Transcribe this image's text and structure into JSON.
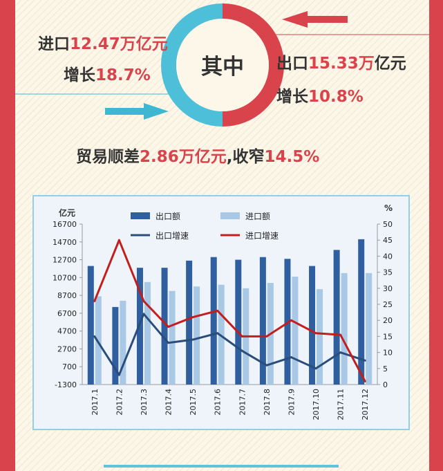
{
  "infographic": {
    "center_label": "其中",
    "import": {
      "prefix": "进口",
      "value": "12.47万亿元",
      "growth_prefix": "增长",
      "growth_value": "18.7%"
    },
    "export": {
      "prefix": "出口",
      "value": "15.33万",
      "unit": "亿元",
      "growth_prefix": "增长",
      "growth_value": "10.8%"
    },
    "surplus": {
      "prefix": "贸易顺差",
      "value": "2.86万亿元",
      "separator": ",收窄",
      "narrow_value": "14.5%"
    }
  },
  "colors": {
    "red": "#d9434b",
    "teal": "#3fb7d1",
    "export_bar": "#2f5f9e",
    "import_bar": "#a8c8e6",
    "export_growth_line": "#2a4d7c",
    "import_growth_line": "#c41d1d"
  },
  "chart_data": {
    "type": "bar",
    "left_unit_label": "亿元",
    "right_unit_label": "%",
    "categories": [
      "2017.1",
      "2017.2",
      "2017.3",
      "2017.4",
      "2017.5",
      "2017.6",
      "2017.7",
      "2017.8",
      "2017.9",
      "2017.10",
      "2017.11",
      "2017.12"
    ],
    "y_left_ticks": [
      -1300,
      700,
      2700,
      4700,
      6700,
      8700,
      10700,
      12700,
      14700,
      16700
    ],
    "y_left_range": [
      -1300,
      16700
    ],
    "y_right_ticks": [
      0,
      5,
      10,
      15,
      20,
      25,
      30,
      35,
      40,
      45,
      50
    ],
    "y_right_range": [
      0,
      50
    ],
    "series": [
      {
        "name": "出口额",
        "kind": "bar",
        "axis": "left",
        "values": [
          12000,
          7400,
          11800,
          11800,
          12600,
          13000,
          12700,
          13000,
          12800,
          12000,
          13800,
          15000
        ]
      },
      {
        "name": "进口额",
        "kind": "bar",
        "axis": "left",
        "values": [
          8600,
          8100,
          10200,
          9200,
          9700,
          9900,
          9500,
          10100,
          10800,
          9400,
          11200,
          11200
        ]
      },
      {
        "name": "出口增速",
        "kind": "line",
        "axis": "right",
        "values": [
          15,
          3,
          22,
          13,
          14,
          16,
          10.5,
          6,
          8.5,
          5,
          10,
          7.5
        ]
      },
      {
        "name": "进口增速",
        "kind": "line",
        "axis": "right",
        "values": [
          26,
          45,
          26,
          18,
          21,
          23,
          15,
          15,
          20,
          16,
          15.5,
          1
        ]
      }
    ],
    "legend": [
      "出口额",
      "进口额",
      "出口增速",
      "进口增速"
    ],
    "legend_position": "top",
    "grid": false
  }
}
